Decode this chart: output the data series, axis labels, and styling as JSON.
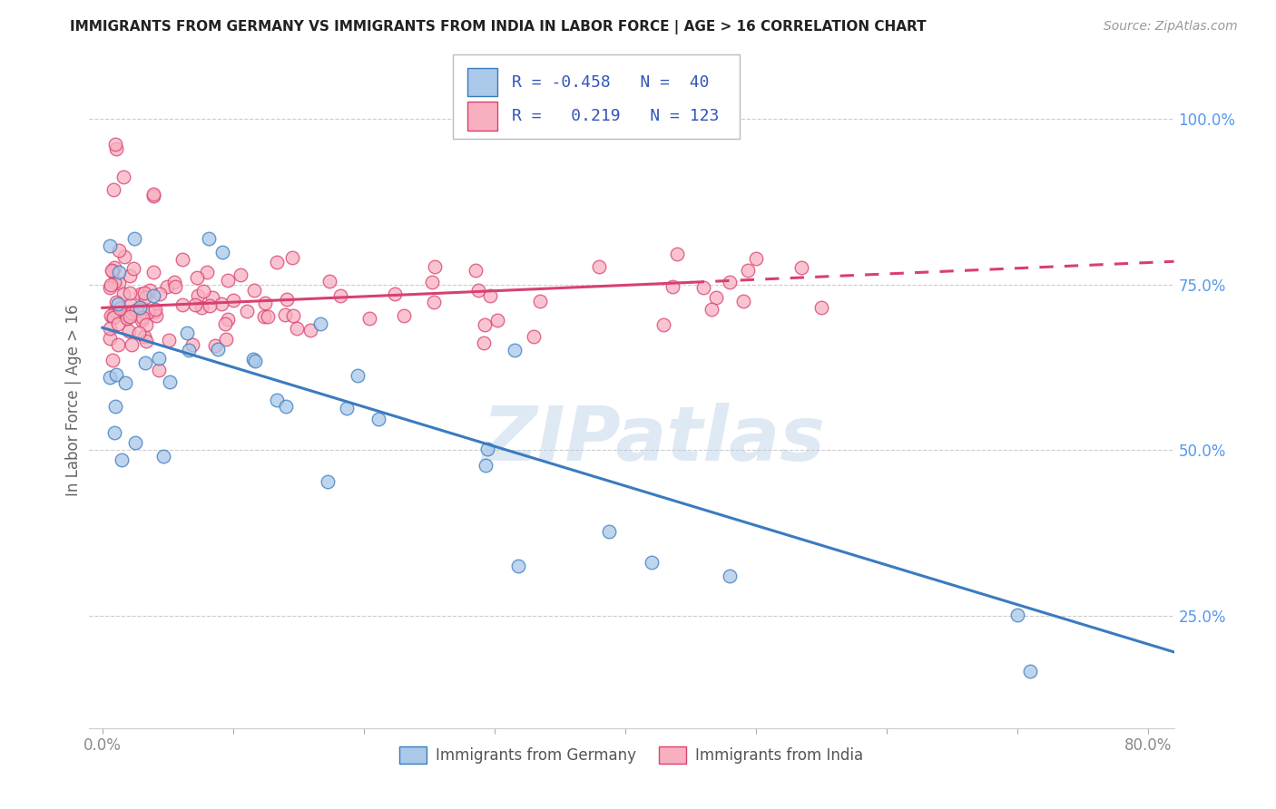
{
  "title": "IMMIGRANTS FROM GERMANY VS IMMIGRANTS FROM INDIA IN LABOR FORCE | AGE > 16 CORRELATION CHART",
  "source": "Source: ZipAtlas.com",
  "ylabel_label": "In Labor Force | Age > 16",
  "watermark": "ZIPatlas",
  "xlim": [
    -0.01,
    0.82
  ],
  "ylim": [
    0.08,
    1.07
  ],
  "germany_line": {
    "x0": 0.0,
    "y0": 0.685,
    "x1": 0.82,
    "y1": 0.195
  },
  "india_line": {
    "x0": 0.0,
    "y0": 0.715,
    "x1": 0.82,
    "y1": 0.785
  },
  "india_line_dashed_start": 0.45,
  "scatter_color_germany": "#aac8e8",
  "scatter_color_india": "#f8b0c0",
  "line_color_germany": "#3a7bbf",
  "line_color_india": "#d84070",
  "background_color": "#ffffff",
  "grid_color": "#cccccc",
  "right_tick_color": "#5599ee",
  "xtick_color": "#888888",
  "legend_text_color": "#3355bb",
  "source_color": "#999999",
  "title_color": "#222222",
  "ylabel_color": "#666666"
}
